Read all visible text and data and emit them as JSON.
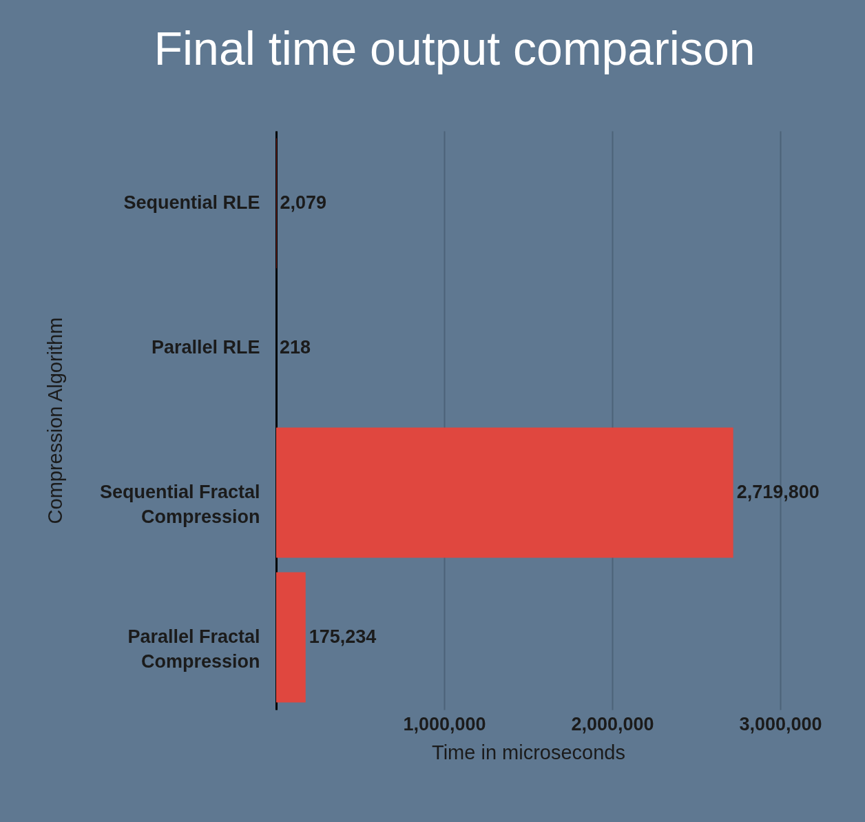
{
  "chart_data": {
    "type": "bar",
    "orientation": "horizontal",
    "title": "Final time output comparison",
    "xlabel": "Time in microseconds",
    "ylabel": "Compression Algorithm",
    "categories": [
      "Sequential RLE",
      "Parallel RLE",
      "Sequential Fractal Compression",
      "Parallel Fractal Compression"
    ],
    "values": [
      2079,
      218,
      2719800,
      175234
    ],
    "value_labels": [
      "2,079",
      "218",
      "2,719,800",
      "175,234"
    ],
    "color": "#e0473f",
    "xlim": [
      0,
      3000000
    ],
    "xticks": [
      {
        "value": 1000000,
        "label": "1,000,000"
      },
      {
        "value": 2000000,
        "label": "2,000,000"
      },
      {
        "value": 3000000,
        "label": "3,000,000"
      }
    ],
    "grid": "x"
  }
}
